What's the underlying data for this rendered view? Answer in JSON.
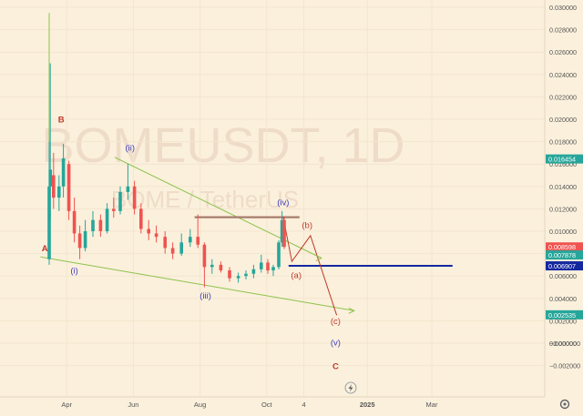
{
  "colors": {
    "bg": "#fbf0dc",
    "up": "#26a69a",
    "down": "#ef5350",
    "trend": "#8bc34a",
    "red": "#c0392b",
    "blue": "#3f3fbf",
    "res": "#a67c6d",
    "hline": "#1428a0"
  },
  "watermark": {
    "symbol": "BOMEUSDT, 1D",
    "pair": "BOME / TetherUS"
  },
  "chart_data": {
    "type": "candlestick",
    "title": "BOMEUSDT, 1D",
    "subtitle": "BOME / TetherUS",
    "x_ticks": [
      "Apr",
      "Jun",
      "Aug",
      "Oct",
      "4",
      "2025",
      "Mar"
    ],
    "y_ticks": [
      "0.030000",
      "0.028000",
      "0.026000",
      "0.024000",
      "0.022000",
      "0.020000",
      "0.018000",
      "0.016000",
      "0.014000",
      "0.012000",
      "0.010000",
      "0.008000",
      "0.006000",
      "0.004000",
      "0.002000",
      "0.000000",
      "−0.000000",
      "−0.002000"
    ],
    "ylim": [
      -0.0025,
      0.03
    ],
    "price_badges": [
      {
        "label": "0.016454",
        "value": 0.016454,
        "color": "#26a69a"
      },
      {
        "label": "0.008598",
        "value": 0.008598,
        "color": "#ef5350"
      },
      {
        "label": "0.007878",
        "value": 0.007878,
        "color": "#26a69a"
      },
      {
        "label": "0.006907",
        "value": 0.006907,
        "color": "#1428a0"
      },
      {
        "label": "0.002535",
        "value": 0.002535,
        "color": "#26a69a"
      }
    ],
    "candles": [
      {
        "d": "2024-03-16",
        "o": 0.0075,
        "h": 0.018,
        "l": 0.007,
        "c": 0.014
      },
      {
        "d": "2024-03-17",
        "o": 0.014,
        "h": 0.025,
        "l": 0.011,
        "c": 0.0155
      },
      {
        "d": "2024-03-20",
        "o": 0.015,
        "h": 0.017,
        "l": 0.012,
        "c": 0.013
      },
      {
        "d": "2024-03-25",
        "o": 0.013,
        "h": 0.015,
        "l": 0.0118,
        "c": 0.014
      },
      {
        "d": "2024-03-29",
        "o": 0.014,
        "h": 0.0178,
        "l": 0.013,
        "c": 0.0165
      },
      {
        "d": "2024-04-03",
        "o": 0.016,
        "h": 0.0163,
        "l": 0.011,
        "c": 0.0118
      },
      {
        "d": "2024-04-08",
        "o": 0.0118,
        "h": 0.013,
        "l": 0.009,
        "c": 0.0098
      },
      {
        "d": "2024-04-13",
        "o": 0.0098,
        "h": 0.0105,
        "l": 0.0075,
        "c": 0.0085
      },
      {
        "d": "2024-04-18",
        "o": 0.0085,
        "h": 0.011,
        "l": 0.0082,
        "c": 0.01
      },
      {
        "d": "2024-04-25",
        "o": 0.01,
        "h": 0.0118,
        "l": 0.0095,
        "c": 0.011
      },
      {
        "d": "2024-05-02",
        "o": 0.011,
        "h": 0.0115,
        "l": 0.0095,
        "c": 0.01
      },
      {
        "d": "2024-05-08",
        "o": 0.01,
        "h": 0.0125,
        "l": 0.0098,
        "c": 0.012
      },
      {
        "d": "2024-05-14",
        "o": 0.012,
        "h": 0.013,
        "l": 0.0112,
        "c": 0.0118
      },
      {
        "d": "2024-05-20",
        "o": 0.0118,
        "h": 0.014,
        "l": 0.0115,
        "c": 0.0135
      },
      {
        "d": "2024-05-27",
        "o": 0.0135,
        "h": 0.016,
        "l": 0.0128,
        "c": 0.014
      },
      {
        "d": "2024-06-02",
        "o": 0.014,
        "h": 0.0145,
        "l": 0.0115,
        "c": 0.012
      },
      {
        "d": "2024-06-08",
        "o": 0.012,
        "h": 0.0125,
        "l": 0.0098,
        "c": 0.0102
      },
      {
        "d": "2024-06-15",
        "o": 0.0102,
        "h": 0.011,
        "l": 0.0092,
        "c": 0.0098
      },
      {
        "d": "2024-06-22",
        "o": 0.0098,
        "h": 0.0105,
        "l": 0.009,
        "c": 0.0095
      },
      {
        "d": "2024-06-30",
        "o": 0.0095,
        "h": 0.01,
        "l": 0.008,
        "c": 0.0085
      },
      {
        "d": "2024-07-07",
        "o": 0.0085,
        "h": 0.009,
        "l": 0.0075,
        "c": 0.008
      },
      {
        "d": "2024-07-15",
        "o": 0.008,
        "h": 0.0098,
        "l": 0.0078,
        "c": 0.009
      },
      {
        "d": "2024-07-23",
        "o": 0.009,
        "h": 0.0102,
        "l": 0.0086,
        "c": 0.0095
      },
      {
        "d": "2024-07-30",
        "o": 0.0095,
        "h": 0.0115,
        "l": 0.0085,
        "c": 0.0088
      },
      {
        "d": "2024-08-05",
        "o": 0.0088,
        "h": 0.009,
        "l": 0.005,
        "c": 0.0068
      },
      {
        "d": "2024-08-12",
        "o": 0.0068,
        "h": 0.0075,
        "l": 0.0062,
        "c": 0.007
      },
      {
        "d": "2024-08-20",
        "o": 0.007,
        "h": 0.0073,
        "l": 0.0063,
        "c": 0.0065
      },
      {
        "d": "2024-08-28",
        "o": 0.0065,
        "h": 0.0068,
        "l": 0.0055,
        "c": 0.0058
      },
      {
        "d": "2024-09-05",
        "o": 0.0058,
        "h": 0.0063,
        "l": 0.0054,
        "c": 0.006
      },
      {
        "d": "2024-09-12",
        "o": 0.006,
        "h": 0.0065,
        "l": 0.0057,
        "c": 0.0062
      },
      {
        "d": "2024-09-19",
        "o": 0.0062,
        "h": 0.007,
        "l": 0.0058,
        "c": 0.0066
      },
      {
        "d": "2024-09-26",
        "o": 0.0066,
        "h": 0.0079,
        "l": 0.0063,
        "c": 0.0072
      },
      {
        "d": "2024-10-02",
        "o": 0.0072,
        "h": 0.0075,
        "l": 0.0062,
        "c": 0.0065
      },
      {
        "d": "2024-10-07",
        "o": 0.0065,
        "h": 0.007,
        "l": 0.006,
        "c": 0.0068
      },
      {
        "d": "2024-10-12",
        "o": 0.0068,
        "h": 0.0092,
        "l": 0.0066,
        "c": 0.009
      },
      {
        "d": "2024-10-15",
        "o": 0.009,
        "h": 0.0118,
        "l": 0.0086,
        "c": 0.011
      },
      {
        "d": "2024-10-17",
        "o": 0.011,
        "h": 0.0113,
        "l": 0.0084,
        "c": 0.0086
      }
    ],
    "lines": [
      {
        "name": "upper-trendline",
        "color": "#8bc34a",
        "points": [
          [
            "2024-05-15",
            0.0166
          ],
          [
            "2024-11-20",
            0.0076
          ]
        ]
      },
      {
        "name": "lower-trendline",
        "color": "#8bc34a",
        "points": [
          [
            "2024-03-08",
            0.0077
          ],
          [
            "2024-12-20",
            0.0029
          ]
        ]
      },
      {
        "name": "left-vertical",
        "color": "#8bc34a",
        "points": [
          [
            "2024-03-16",
            0.0295
          ],
          [
            "2024-03-16",
            0.0078
          ]
        ]
      },
      {
        "name": "resistance",
        "color": "#a67c6d",
        "points": [
          [
            "2024-07-27",
            0.01125
          ],
          [
            "2024-10-31",
            0.01125
          ]
        ]
      },
      {
        "name": "blue-level",
        "color": "#1428a0",
        "points": [
          [
            "2024-10-21",
            0.006907
          ],
          [
            "2025-03-20",
            0.006907
          ]
        ]
      },
      {
        "name": "projection-path",
        "color": "#c0392b",
        "points": [
          [
            "2024-10-16",
            0.0113
          ],
          [
            "2024-10-24",
            0.0073
          ],
          [
            "2024-11-10",
            0.0096
          ],
          [
            "2024-12-04",
            0.0025
          ]
        ]
      }
    ],
    "wave_labels": [
      {
        "text": "A",
        "date": "2024-03-12",
        "value": 0.0082,
        "color": "#c0392b"
      },
      {
        "text": "B",
        "date": "2024-03-27",
        "value": 0.0197,
        "color": "#c0392b"
      },
      {
        "text": "(i)",
        "date": "2024-04-08",
        "value": 0.0062,
        "color": "#3f3fbf"
      },
      {
        "text": "(ii)",
        "date": "2024-05-29",
        "value": 0.0172,
        "color": "#3f3fbf"
      },
      {
        "text": "(iii)",
        "date": "2024-08-06",
        "value": 0.004,
        "color": "#3f3fbf"
      },
      {
        "text": "(iv)",
        "date": "2024-10-16",
        "value": 0.0123,
        "color": "#3f3fbf"
      },
      {
        "text": "(a)",
        "date": "2024-10-28",
        "value": 0.0058,
        "color": "#c0392b"
      },
      {
        "text": "(b)",
        "date": "2024-11-07",
        "value": 0.0103,
        "color": "#c0392b"
      },
      {
        "text": "(c)",
        "date": "2024-12-03",
        "value": 0.0017,
        "color": "#c0392b"
      },
      {
        "text": "(v)",
        "date": "2024-12-03",
        "value": -0.0002,
        "color": "#3f3fbf"
      },
      {
        "text": "C",
        "date": "2024-12-03",
        "value": -0.0023,
        "color": "#c0392b"
      }
    ]
  }
}
